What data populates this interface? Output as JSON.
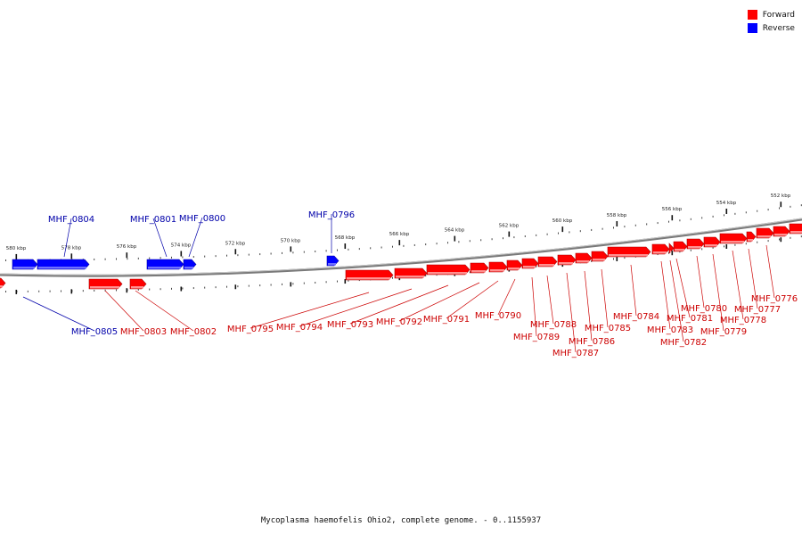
{
  "legend": [
    {
      "label": "Forward",
      "color": "#ff0000"
    },
    {
      "label": "Reverse",
      "color": "#0000ff"
    }
  ],
  "footer": "Mycoplasma haemofelis Ohio2, complete genome. - 0..1155937",
  "axis_ticks": [
    "580 kbp",
    "578 kbp",
    "576 kbp",
    "574 kbp",
    "572 kbp",
    "570 kbp",
    "568 kbp",
    "566 kbp",
    "564 kbp",
    "562 kbp",
    "560 kbp",
    "558 kbp",
    "556 kbp",
    "554 kbp",
    "552 kbp"
  ],
  "reverse_genes": [
    "MHF_0805",
    "MHF_0804",
    "MHF_0801",
    "MHF_0800",
    "MHF_0796"
  ],
  "forward_genes": [
    "MHF_0803",
    "MHF_0802",
    "MHF_0795",
    "MHF_0794",
    "MHF_0793",
    "MHF_0792",
    "MHF_0791",
    "MHF_0790",
    "MHF_0789",
    "MHF_0788",
    "MHF_0787",
    "MHF_0786",
    "MHF_0785",
    "MHF_0784",
    "MHF_0783",
    "MHF_0782",
    "MHF_0781",
    "MHF_0780",
    "MHF_0779",
    "MHF_0778",
    "MHF_0777",
    "MHF_0776"
  ],
  "colors": {
    "forward": "#ff0000",
    "reverse": "#0000ff",
    "backbone": "#888888"
  }
}
